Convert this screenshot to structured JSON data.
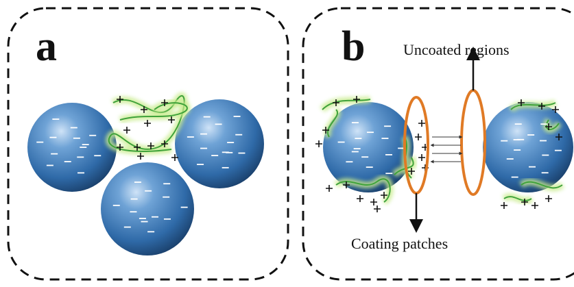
{
  "panels": [
    {
      "label": "a"
    },
    {
      "label": "b",
      "top_annotation": "Uncoated regions",
      "bottom_annotation": "Coating patches"
    }
  ]
}
